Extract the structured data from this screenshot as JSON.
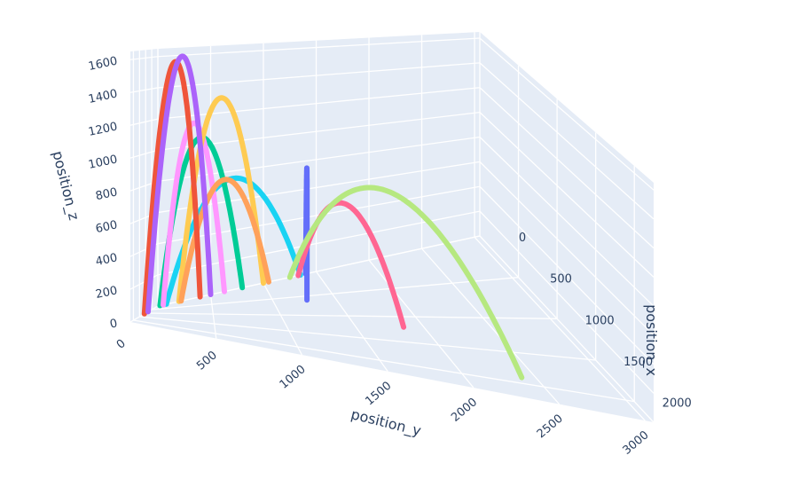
{
  "chart_data": {
    "type": "line3d",
    "title": "",
    "axes": {
      "x": {
        "label": "position_x",
        "range": [
          0,
          2250
        ],
        "ticks": [
          "0",
          "500",
          "1000",
          "1500",
          "2000"
        ],
        "tick_values": [
          0,
          500,
          1000,
          1500,
          2000
        ]
      },
      "y": {
        "label": "position_y",
        "range": [
          0,
          3050
        ],
        "ticks": [
          "0",
          "500",
          "1000",
          "1500",
          "2000",
          "2500",
          "3000"
        ],
        "tick_values": [
          0,
          500,
          1000,
          1500,
          2000,
          2500,
          3000
        ]
      },
      "z": {
        "label": "position_z",
        "range": [
          0,
          1650
        ],
        "ticks": [
          "0",
          "200",
          "400",
          "600",
          "800",
          "1000",
          "1200",
          "1400",
          "1600"
        ],
        "tick_values": [
          0,
          200,
          400,
          600,
          800,
          1000,
          1200,
          1400,
          1600
        ]
      }
    },
    "grid": true,
    "legend": false,
    "series": [
      {
        "color": "#19d3f3",
        "start": [
          0,
          1350,
          0
        ],
        "end": [
          0,
          80,
          0
        ],
        "peak_z": 750
      },
      {
        "color": "#00cc96",
        "start": [
          0,
          800,
          0
        ],
        "end": [
          0,
          20,
          0
        ],
        "peak_z": 1050
      },
      {
        "color": "#ff97ff",
        "start": [
          0,
          630,
          0
        ],
        "end": [
          0,
          50,
          0
        ],
        "peak_z": 1150
      },
      {
        "color": "#636efa",
        "start": [
          600,
          1270,
          0
        ],
        "end": [
          0,
          1400,
          0
        ],
        "peak_z": 830
      },
      {
        "color": "#ff6692",
        "start": [
          0,
          1330,
          0
        ],
        "end": [
          1200,
          1850,
          0
        ],
        "peak_z": 650
      },
      {
        "color": "#fecb52",
        "start": [
          0,
          200,
          0
        ],
        "end": [
          0,
          1000,
          0
        ],
        "peak_z": 1300
      },
      {
        "color": "#ffa15a",
        "start": [
          0,
          220,
          0
        ],
        "end": [
          0,
          1050,
          0
        ],
        "peak_z": 750
      },
      {
        "color": "#ef553b",
        "start": [
          0,
          400,
          0
        ],
        "end": [
          1100,
          0,
          0
        ],
        "peak_z": 1580
      },
      {
        "color": "#ab63fa",
        "start": [
          0,
          500,
          0
        ],
        "end": [
          800,
          0,
          0
        ],
        "peak_z": 1610
      },
      {
        "color": "#b6e880",
        "start": [
          0,
          1250,
          0
        ],
        "end": [
          1900,
          2400,
          0
        ],
        "peak_z": 850
      }
    ]
  }
}
